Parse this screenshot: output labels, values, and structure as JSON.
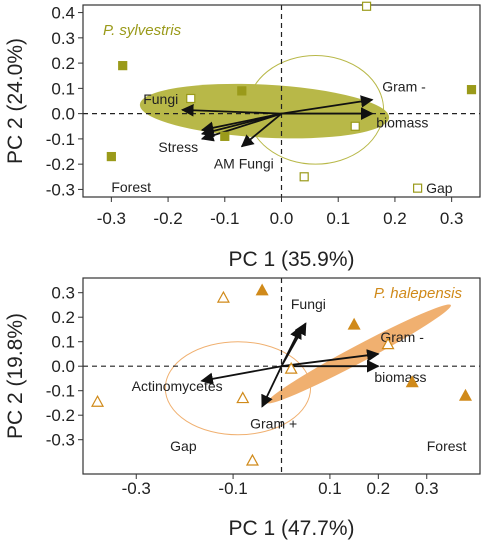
{
  "chart_data": [
    {
      "type": "scatter",
      "subtype": "pca-biplot",
      "species": "P. sylvestris",
      "color": "#9a9a1a",
      "ellipse_fill": "#b8b848",
      "xlabel": "PC 1 (35.9%)",
      "ylabel": "PC 2 (24.0%)",
      "xlim": [
        -0.35,
        0.35
      ],
      "ylim": [
        -0.33,
        0.43
      ],
      "x_ticks": [
        -0.3,
        -0.2,
        -0.1,
        0.0,
        0.1,
        0.2,
        0.3
      ],
      "x_tick_labels": [
        "-0.3",
        "-0.2",
        "-0.1",
        "0.0",
        "0.1",
        "0.2",
        "0.3"
      ],
      "y_ticks": [
        -0.3,
        -0.2,
        -0.1,
        0.0,
        0.1,
        0.2,
        0.3,
        0.4
      ],
      "y_tick_labels": [
        "-0.3",
        "-0.2",
        "-0.1",
        "0.0",
        "0.1",
        "0.2",
        "0.3",
        "0.4"
      ],
      "groups": [
        {
          "name": "Forest",
          "marker": "square-filled",
          "points": [
            [
              -0.28,
              0.19
            ],
            [
              -0.3,
              -0.17
            ],
            [
              -0.07,
              0.09
            ],
            [
              -0.1,
              -0.09
            ],
            [
              0.335,
              0.095
            ]
          ]
        },
        {
          "name": "Gap",
          "marker": "square-open",
          "points": [
            [
              0.15,
              0.425
            ],
            [
              -0.16,
              0.06
            ],
            [
              0.13,
              -0.05
            ],
            [
              0.04,
              -0.25
            ],
            [
              0.24,
              -0.295
            ]
          ]
        }
      ],
      "vectors": [
        {
          "label": "Fungi",
          "end": [
            -0.175,
            0.015
          ]
        },
        {
          "label": "Gram -",
          "end": [
            0.16,
            0.055
          ]
        },
        {
          "label": "biomass",
          "end": [
            0.16,
            0.0
          ]
        },
        {
          "label": "Stress",
          "end": [
            -0.14,
            -0.08
          ]
        },
        {
          "label": "AM Fungi",
          "end": [
            -0.07,
            -0.13
          ]
        }
      ],
      "extra_vectors": [
        [
          -0.14,
          -0.065
        ],
        [
          -0.14,
          -0.1
        ],
        [
          0.16,
          0.0
        ]
      ],
      "ellipses": [
        {
          "group": "Forest",
          "style": "filled",
          "center": [
            -0.03,
            0.01
          ],
          "rx": 0.22,
          "ry": 0.105,
          "angle_deg": 3
        },
        {
          "group": "Gap",
          "style": "outline",
          "center": [
            0.06,
            0.015
          ],
          "rx": 0.12,
          "ry": 0.215,
          "angle_deg": 0
        }
      ],
      "annotations": [
        {
          "text": "Forest",
          "at": [
            -0.3,
            -0.29
          ]
        },
        {
          "text": "Gap",
          "at": [
            0.255,
            -0.295
          ]
        }
      ]
    },
    {
      "type": "scatter",
      "subtype": "pca-biplot",
      "species": "P. halepensis",
      "color": "#d08a1a",
      "ellipse_fill": "#f0b070",
      "xlabel": "PC 1 (47.7%)",
      "ylabel": "PC 2 (19.8%)",
      "xlim": [
        -0.41,
        0.41
      ],
      "ylim": [
        -0.44,
        0.36
      ],
      "x_ticks": [
        -0.3,
        -0.1,
        0.1,
        0.2,
        0.3
      ],
      "x_tick_labels": [
        "-0.3",
        "-0.1",
        "0.1",
        "0.2",
        "0.3"
      ],
      "y_ticks": [
        -0.3,
        -0.2,
        -0.1,
        0.0,
        0.1,
        0.2,
        0.3
      ],
      "y_tick_labels": [
        "-0.3",
        "-0.2",
        "-0.1",
        "0.0",
        "0.1",
        "0.2",
        "0.3"
      ],
      "groups": [
        {
          "name": "Forest",
          "marker": "triangle-filled",
          "points": [
            [
              -0.04,
              0.31
            ],
            [
              0.15,
              0.17
            ],
            [
              0.27,
              -0.065
            ],
            [
              0.38,
              -0.12
            ]
          ]
        },
        {
          "name": "Gap",
          "marker": "triangle-open",
          "points": [
            [
              -0.12,
              0.28
            ],
            [
              -0.38,
              -0.145
            ],
            [
              -0.08,
              -0.13
            ],
            [
              0.22,
              0.09
            ],
            [
              0.02,
              -0.01
            ],
            [
              -0.06,
              -0.385
            ]
          ]
        }
      ],
      "vectors": [
        {
          "label": "Fungi",
          "end": [
            0.04,
            0.16
          ]
        },
        {
          "label": "Gram -",
          "end": [
            0.2,
            0.05
          ]
        },
        {
          "label": "biomass",
          "end": [
            0.2,
            0.0
          ]
        },
        {
          "label": "Actinomycetes",
          "end": [
            -0.165,
            -0.06
          ]
        },
        {
          "label": "Gram +",
          "end": [
            -0.04,
            -0.165
          ]
        }
      ],
      "extra_vectors": [
        [
          0.05,
          0.175
        ]
      ],
      "ellipses": [
        {
          "group": "Forest",
          "style": "filled",
          "center": [
            0.16,
            0.05
          ],
          "rx": 0.215,
          "ry": 0.035,
          "angle_deg": -28
        },
        {
          "group": "Gap",
          "style": "outline",
          "center": [
            -0.09,
            -0.09
          ],
          "rx": 0.15,
          "ry": 0.19,
          "angle_deg": 0
        }
      ],
      "annotations": [
        {
          "text": "Gap",
          "at": [
            -0.23,
            -0.325
          ]
        },
        {
          "text": "Forest",
          "at": [
            0.3,
            -0.325
          ]
        }
      ]
    }
  ]
}
